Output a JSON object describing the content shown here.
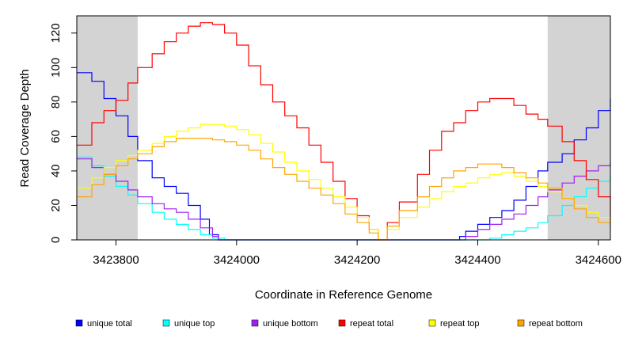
{
  "chart_data": {
    "type": "line",
    "title": "",
    "xlabel": "Coordinate in Reference Genome",
    "ylabel": "Read Coverage Depth",
    "xlim": [
      3423735,
      3424620
    ],
    "ylim": [
      0,
      130
    ],
    "x_ticks": [
      3423800,
      3424000,
      3424200,
      3424400,
      3424600
    ],
    "y_ticks": [
      0,
      20,
      40,
      60,
      80,
      100,
      120
    ],
    "grid": false,
    "legend_position": "bottom",
    "shaded_regions": [
      {
        "x_start": 3423735,
        "x_end": 3423836
      },
      {
        "x_start": 3424516,
        "x_end": 3424620
      }
    ],
    "series": [
      {
        "name": "unique total",
        "color": "#0000ff",
        "x": [
          3423735,
          3423760,
          3423780,
          3423800,
          3423820,
          3423836,
          3423860,
          3423880,
          3423900,
          3423920,
          3423940,
          3423955,
          3423970,
          3424000,
          3424100,
          3424200,
          3424300,
          3424360,
          3424370,
          3424380,
          3424400,
          3424420,
          3424440,
          3424460,
          3424480,
          3424500,
          3424516,
          3424540,
          3424560,
          3424580,
          3424600,
          3424620
        ],
        "values": [
          97,
          92,
          82,
          72,
          60,
          46,
          36,
          31,
          27,
          20,
          12,
          3,
          0,
          0,
          0,
          0,
          0,
          0,
          2,
          5,
          9,
          13,
          17,
          23,
          31,
          40,
          45,
          50,
          58,
          65,
          75,
          82
        ]
      },
      {
        "name": "unique top",
        "color": "#00ffff",
        "x": [
          3423735,
          3423760,
          3423780,
          3423800,
          3423820,
          3423836,
          3423860,
          3423880,
          3423900,
          3423920,
          3423940,
          3423960,
          3423980,
          3424000,
          3424100,
          3424200,
          3424300,
          3424380,
          3424400,
          3424420,
          3424440,
          3424460,
          3424480,
          3424500,
          3424516,
          3424540,
          3424560,
          3424580,
          3424600,
          3424620
        ],
        "values": [
          48,
          43,
          37,
          31,
          26,
          21,
          16,
          12,
          9,
          6,
          3,
          1,
          0,
          0,
          0,
          0,
          0,
          0,
          0,
          1,
          3,
          5,
          7,
          10,
          14,
          20,
          25,
          30,
          34,
          38
        ]
      },
      {
        "name": "unique bottom",
        "color": "#a020f0",
        "x": [
          3423735,
          3423760,
          3423780,
          3423800,
          3423820,
          3423836,
          3423860,
          3423880,
          3423900,
          3423920,
          3423940,
          3423960,
          3423970,
          3424000,
          3424100,
          3424200,
          3424300,
          3424370,
          3424380,
          3424400,
          3424420,
          3424440,
          3424460,
          3424480,
          3424500,
          3424516,
          3424540,
          3424560,
          3424580,
          3424600,
          3424620
        ],
        "values": [
          47,
          42,
          38,
          34,
          29,
          25,
          21,
          18,
          16,
          12,
          7,
          2,
          0,
          0,
          0,
          0,
          0,
          0,
          2,
          6,
          9,
          12,
          15,
          20,
          25,
          29,
          33,
          37,
          40,
          43,
          45
        ]
      },
      {
        "name": "repeat total",
        "color": "#ff0000",
        "x": [
          3423735,
          3423760,
          3423780,
          3423800,
          3423820,
          3423836,
          3423860,
          3423880,
          3423900,
          3423920,
          3423940,
          3423960,
          3423980,
          3424000,
          3424020,
          3424040,
          3424060,
          3424080,
          3424100,
          3424120,
          3424140,
          3424160,
          3424180,
          3424200,
          3424220,
          3424235,
          3424250,
          3424270,
          3424300,
          3424320,
          3424340,
          3424360,
          3424380,
          3424400,
          3424420,
          3424440,
          3424460,
          3424480,
          3424500,
          3424516,
          3424540,
          3424560,
          3424580,
          3424600,
          3424620
        ],
        "values": [
          55,
          68,
          75,
          81,
          91,
          100,
          108,
          115,
          120,
          124,
          126,
          125,
          120,
          113,
          101,
          90,
          80,
          72,
          65,
          55,
          45,
          34,
          24,
          14,
          6,
          0,
          10,
          22,
          38,
          52,
          63,
          68,
          75,
          80,
          82,
          82,
          78,
          73,
          70,
          66,
          57,
          46,
          35,
          25,
          12
        ]
      },
      {
        "name": "repeat top",
        "color": "#ffff00",
        "x": [
          3423735,
          3423760,
          3423780,
          3423800,
          3423820,
          3423836,
          3423860,
          3423880,
          3423900,
          3423920,
          3423940,
          3423960,
          3423980,
          3424000,
          3424020,
          3424040,
          3424060,
          3424080,
          3424100,
          3424120,
          3424140,
          3424160,
          3424180,
          3424200,
          3424220,
          3424235,
          3424250,
          3424270,
          3424300,
          3424320,
          3424340,
          3424360,
          3424380,
          3424400,
          3424420,
          3424440,
          3424460,
          3424480,
          3424500,
          3424516,
          3424540,
          3424560,
          3424580,
          3424600,
          3424620
        ],
        "values": [
          30,
          36,
          42,
          46,
          49,
          52,
          56,
          60,
          63,
          65,
          67,
          67,
          66,
          64,
          61,
          56,
          51,
          45,
          40,
          35,
          30,
          25,
          19,
          13,
          6,
          0,
          6,
          13,
          19,
          24,
          28,
          31,
          33,
          36,
          38,
          39,
          37,
          34,
          31,
          28,
          24,
          20,
          16,
          13,
          10
        ]
      },
      {
        "name": "repeat bottom",
        "color": "#ffa500",
        "x": [
          3423735,
          3423760,
          3423780,
          3423800,
          3423820,
          3423836,
          3423860,
          3423880,
          3423900,
          3423920,
          3423940,
          3423960,
          3423980,
          3424000,
          3424020,
          3424040,
          3424060,
          3424080,
          3424100,
          3424120,
          3424140,
          3424160,
          3424180,
          3424200,
          3424220,
          3424235,
          3424250,
          3424270,
          3424300,
          3424320,
          3424340,
          3424360,
          3424380,
          3424400,
          3424420,
          3424440,
          3424460,
          3424480,
          3424500,
          3424516,
          3424540,
          3424560,
          3424580,
          3424600,
          3424620
        ],
        "values": [
          25,
          32,
          38,
          43,
          47,
          50,
          54,
          57,
          59,
          59,
          59,
          58,
          57,
          55,
          52,
          47,
          42,
          38,
          34,
          30,
          26,
          21,
          15,
          10,
          4,
          0,
          8,
          17,
          25,
          31,
          36,
          40,
          42,
          44,
          44,
          42,
          39,
          36,
          33,
          30,
          24,
          18,
          13,
          10,
          6
        ]
      }
    ]
  }
}
